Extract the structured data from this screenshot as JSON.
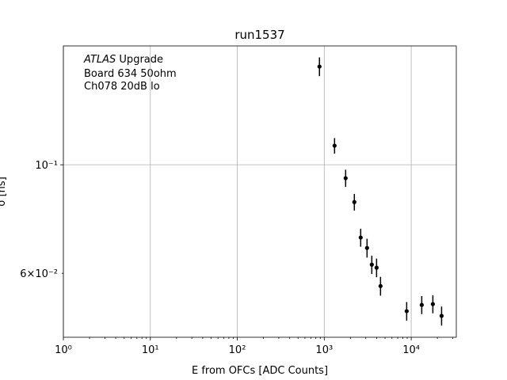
{
  "chart_data": {
    "type": "errorbar",
    "title": "run1537",
    "xlabel": "E from OFCs [ADC Counts]",
    "ylabel": "σ [ns]",
    "annotation": {
      "emph": "ATLAS",
      "lines": [
        "Upgrade",
        "Board 634 50ohm",
        "Ch078 20dB lo"
      ]
    },
    "xscale": "log",
    "yscale": "log",
    "grid": true,
    "color": "#000000",
    "xlim": [
      1,
      33000
    ],
    "ylim": [
      0.0444,
      0.175
    ],
    "xticks": [
      {
        "value": 1,
        "label": "10⁰"
      },
      {
        "value": 10,
        "label": "10¹"
      },
      {
        "value": 100,
        "label": "10²"
      },
      {
        "value": 1000,
        "label": "10³"
      },
      {
        "value": 10000,
        "label": "10⁴"
      }
    ],
    "yticks": [
      {
        "value": 0.1,
        "label": "10⁻¹"
      }
    ],
    "yminorticks": [
      {
        "value": 0.06,
        "label": "6×10⁻²"
      }
    ],
    "x": [
      881,
      1314,
      1762,
      2218,
      2625,
      3105,
      3523,
      3997,
      4437,
      8870,
      13220,
      17740,
      22350
    ],
    "values": [
      0.1588,
      0.1094,
      0.0939,
      0.0839,
      0.071,
      0.0676,
      0.0625,
      0.0616,
      0.0565,
      0.0502,
      0.0517,
      0.0519,
      0.0491
    ],
    "errors": [
      0.007,
      0.004,
      0.0038,
      0.0033,
      0.003,
      0.003,
      0.0027,
      0.0027,
      0.0025,
      0.0022,
      0.0022,
      0.0022,
      0.0022
    ]
  }
}
